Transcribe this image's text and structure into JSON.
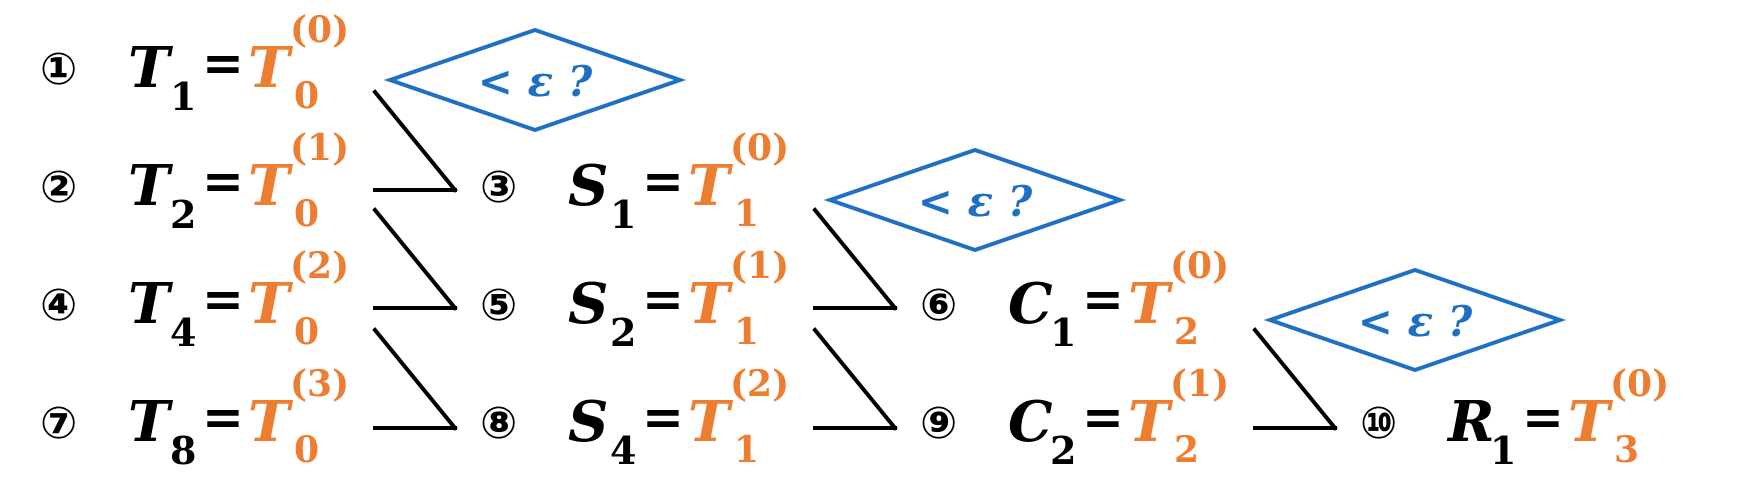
{
  "entries": [
    {
      "id": "e1",
      "num": "①",
      "lhs": "T",
      "lhs_sub": "1",
      "rhs": "T",
      "rhs_sub": "0",
      "rhs_sup": "(0)"
    },
    {
      "id": "e2",
      "num": "②",
      "lhs": "T",
      "lhs_sub": "2",
      "rhs": "T",
      "rhs_sub": "0",
      "rhs_sup": "(1)"
    },
    {
      "id": "e3",
      "num": "③",
      "lhs": "S",
      "lhs_sub": "1",
      "rhs": "T",
      "rhs_sub": "1",
      "rhs_sup": "(0)"
    },
    {
      "id": "e4",
      "num": "④",
      "lhs": "T",
      "lhs_sub": "4",
      "rhs": "T",
      "rhs_sub": "0",
      "rhs_sup": "(2)"
    },
    {
      "id": "e5",
      "num": "⑤",
      "lhs": "S",
      "lhs_sub": "2",
      "rhs": "T",
      "rhs_sub": "1",
      "rhs_sup": "(1)"
    },
    {
      "id": "e6",
      "num": "⑥",
      "lhs": "C",
      "lhs_sub": "1",
      "rhs": "T",
      "rhs_sub": "2",
      "rhs_sup": "(0)"
    },
    {
      "id": "e7",
      "num": "⑦",
      "lhs": "T",
      "lhs_sub": "8",
      "rhs": "T",
      "rhs_sub": "0",
      "rhs_sup": "(3)"
    },
    {
      "id": "e8",
      "num": "⑧",
      "lhs": "S",
      "lhs_sub": "4",
      "rhs": "T",
      "rhs_sub": "1",
      "rhs_sup": "(2)"
    },
    {
      "id": "e9",
      "num": "⑨",
      "lhs": "C",
      "lhs_sub": "2",
      "rhs": "T",
      "rhs_sub": "2",
      "rhs_sup": "(1)"
    },
    {
      "id": "e10",
      "num": "⑩",
      "lhs": "R",
      "lhs_sub": "1",
      "rhs": "T",
      "rhs_sub": "3",
      "rhs_sup": "(0)"
    }
  ],
  "checks": [
    {
      "id": "c1",
      "text": "< ε ?"
    },
    {
      "id": "c2",
      "text": "< ε ?"
    },
    {
      "id": "c3",
      "text": "< ε ?"
    }
  ],
  "colors": {
    "text": "#000000",
    "accent": "#ED7D31",
    "check": "#1F6FC5"
  }
}
